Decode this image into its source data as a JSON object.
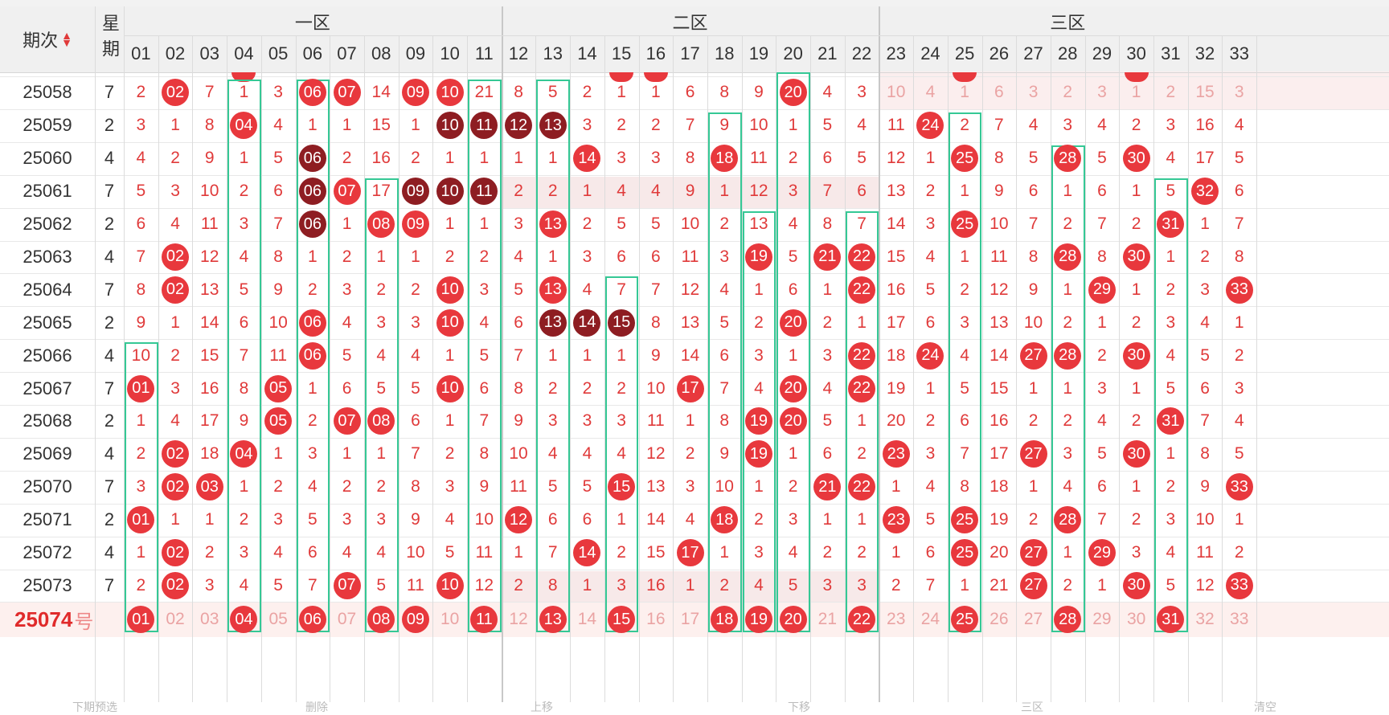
{
  "header": {
    "issue_col": "期次",
    "weekday_col": "星期",
    "zones": [
      "一区",
      "二区",
      "三区"
    ]
  },
  "columns": [
    "01",
    "02",
    "03",
    "04",
    "05",
    "06",
    "07",
    "08",
    "09",
    "10",
    "11",
    "12",
    "13",
    "14",
    "15",
    "16",
    "17",
    "18",
    "19",
    "20",
    "21",
    "22",
    "23",
    "24",
    "25",
    "26",
    "27",
    "28",
    "29",
    "30",
    "31",
    "32",
    "33"
  ],
  "rows": [
    {
      "issue": "25058",
      "week": "7",
      "cells": [
        "2",
        "02",
        "7",
        "1",
        "3",
        "06",
        "07",
        "14",
        "09",
        "10",
        "21",
        "8",
        "5",
        "2",
        "1",
        "1",
        "6",
        "8",
        "9",
        "20",
        "4",
        "3",
        "10",
        "4",
        "1",
        "6",
        "3",
        "2",
        "3",
        "1",
        "2",
        "15",
        "3"
      ],
      "balls": [
        2,
        6,
        7,
        9,
        10,
        20
      ]
    },
    {
      "issue": "25059",
      "week": "2",
      "cells": [
        "3",
        "1",
        "8",
        "04",
        "4",
        "1",
        "1",
        "15",
        "1",
        "10",
        "11",
        "12",
        "13",
        "3",
        "2",
        "2",
        "7",
        "9",
        "10",
        "1",
        "5",
        "4",
        "11",
        "24",
        "2",
        "7",
        "4",
        "3",
        "4",
        "2",
        "3",
        "16",
        "4"
      ],
      "balls": [
        4,
        10,
        11,
        12,
        13,
        24
      ],
      "dark": [
        10,
        11,
        12,
        13
      ]
    },
    {
      "issue": "25060",
      "week": "4",
      "cells": [
        "4",
        "2",
        "9",
        "1",
        "5",
        "06",
        "2",
        "16",
        "2",
        "1",
        "1",
        "1",
        "1",
        "14",
        "3",
        "3",
        "8",
        "18",
        "11",
        "2",
        "6",
        "5",
        "12",
        "1",
        "25",
        "8",
        "5",
        "28",
        "5",
        "30",
        "4",
        "17",
        "5"
      ],
      "balls": [
        6,
        14,
        18,
        25,
        28,
        30
      ],
      "dark": [
        6
      ]
    },
    {
      "issue": "25061",
      "week": "7",
      "cells": [
        "5",
        "3",
        "10",
        "2",
        "6",
        "06",
        "07",
        "17",
        "09",
        "10",
        "11",
        "2",
        "2",
        "1",
        "4",
        "4",
        "9",
        "1",
        "12",
        "3",
        "7",
        "6",
        "13",
        "2",
        "1",
        "9",
        "6",
        "1",
        "6",
        "1",
        "5",
        "32",
        "6"
      ],
      "balls": [
        6,
        7,
        9,
        10,
        11,
        32
      ],
      "dark": [
        6,
        9,
        10,
        11
      ]
    },
    {
      "issue": "25062",
      "week": "2",
      "cells": [
        "6",
        "4",
        "11",
        "3",
        "7",
        "06",
        "1",
        "08",
        "09",
        "1",
        "1",
        "3",
        "13",
        "2",
        "5",
        "5",
        "10",
        "2",
        "13",
        "4",
        "8",
        "7",
        "14",
        "3",
        "25",
        "10",
        "7",
        "2",
        "7",
        "2",
        "31",
        "1",
        "7"
      ],
      "balls": [
        6,
        8,
        9,
        13,
        25,
        31
      ],
      "dark": [
        6
      ]
    },
    {
      "issue": "25063",
      "week": "4",
      "cells": [
        "7",
        "02",
        "12",
        "4",
        "8",
        "1",
        "2",
        "1",
        "1",
        "2",
        "2",
        "4",
        "1",
        "3",
        "6",
        "6",
        "11",
        "3",
        "19",
        "5",
        "21",
        "22",
        "15",
        "4",
        "1",
        "11",
        "8",
        "28",
        "8",
        "30",
        "1",
        "2",
        "8"
      ],
      "balls": [
        2,
        19,
        21,
        22,
        28,
        30
      ]
    },
    {
      "issue": "25064",
      "week": "7",
      "cells": [
        "8",
        "02",
        "13",
        "5",
        "9",
        "2",
        "3",
        "2",
        "2",
        "10",
        "3",
        "5",
        "13",
        "4",
        "7",
        "7",
        "12",
        "4",
        "1",
        "6",
        "1",
        "22",
        "16",
        "5",
        "2",
        "12",
        "9",
        "1",
        "29",
        "1",
        "2",
        "3",
        "33"
      ],
      "balls": [
        2,
        10,
        13,
        22,
        29,
        33
      ]
    },
    {
      "issue": "25065",
      "week": "2",
      "cells": [
        "9",
        "1",
        "14",
        "6",
        "10",
        "06",
        "4",
        "3",
        "3",
        "10",
        "4",
        "6",
        "13",
        "14",
        "15",
        "8",
        "13",
        "5",
        "2",
        "20",
        "2",
        "1",
        "17",
        "6",
        "3",
        "13",
        "10",
        "2",
        "1",
        "2",
        "3",
        "4",
        "1"
      ],
      "balls": [
        6,
        10,
        13,
        14,
        15,
        20
      ],
      "dark": [
        13,
        14,
        15
      ]
    },
    {
      "issue": "25066",
      "week": "4",
      "cells": [
        "10",
        "2",
        "15",
        "7",
        "11",
        "06",
        "5",
        "4",
        "4",
        "1",
        "5",
        "7",
        "1",
        "1",
        "1",
        "9",
        "14",
        "6",
        "3",
        "1",
        "3",
        "22",
        "18",
        "24",
        "4",
        "14",
        "27",
        "28",
        "2",
        "30",
        "4",
        "5",
        "2"
      ],
      "balls": [
        6,
        22,
        24,
        27,
        28,
        30
      ]
    },
    {
      "issue": "25067",
      "week": "7",
      "cells": [
        "01",
        "3",
        "16",
        "8",
        "05",
        "1",
        "6",
        "5",
        "5",
        "10",
        "6",
        "8",
        "2",
        "2",
        "2",
        "10",
        "17",
        "7",
        "4",
        "20",
        "4",
        "22",
        "19",
        "1",
        "5",
        "15",
        "1",
        "1",
        "3",
        "1",
        "5",
        "6",
        "3"
      ],
      "balls": [
        1,
        5,
        10,
        17,
        20,
        22
      ]
    },
    {
      "issue": "25068",
      "week": "2",
      "cells": [
        "1",
        "4",
        "17",
        "9",
        "05",
        "2",
        "07",
        "08",
        "6",
        "1",
        "7",
        "9",
        "3",
        "3",
        "3",
        "11",
        "1",
        "8",
        "19",
        "20",
        "5",
        "1",
        "20",
        "2",
        "6",
        "16",
        "2",
        "2",
        "4",
        "2",
        "31",
        "7",
        "4"
      ],
      "balls": [
        5,
        7,
        8,
        19,
        20,
        31
      ]
    },
    {
      "issue": "25069",
      "week": "4",
      "cells": [
        "2",
        "02",
        "18",
        "04",
        "1",
        "3",
        "1",
        "1",
        "7",
        "2",
        "8",
        "10",
        "4",
        "4",
        "4",
        "12",
        "2",
        "9",
        "19",
        "1",
        "6",
        "2",
        "23",
        "3",
        "7",
        "17",
        "27",
        "3",
        "5",
        "30",
        "1",
        "8",
        "5"
      ],
      "balls": [
        2,
        4,
        19,
        23,
        27,
        30
      ]
    },
    {
      "issue": "25070",
      "week": "7",
      "cells": [
        "3",
        "02",
        "03",
        "1",
        "2",
        "4",
        "2",
        "2",
        "8",
        "3",
        "9",
        "11",
        "5",
        "5",
        "15",
        "13",
        "3",
        "10",
        "1",
        "2",
        "21",
        "22",
        "1",
        "4",
        "8",
        "18",
        "1",
        "4",
        "6",
        "1",
        "2",
        "9",
        "33"
      ],
      "balls": [
        2,
        3,
        15,
        21,
        22,
        33
      ]
    },
    {
      "issue": "25071",
      "week": "2",
      "cells": [
        "01",
        "1",
        "1",
        "2",
        "3",
        "5",
        "3",
        "3",
        "9",
        "4",
        "10",
        "12",
        "6",
        "6",
        "1",
        "14",
        "4",
        "18",
        "2",
        "3",
        "1",
        "1",
        "23",
        "5",
        "25",
        "19",
        "2",
        "28",
        "7",
        "2",
        "3",
        "10",
        "1"
      ],
      "balls": [
        1,
        12,
        18,
        23,
        25,
        28
      ]
    },
    {
      "issue": "25072",
      "week": "4",
      "cells": [
        "1",
        "02",
        "2",
        "3",
        "4",
        "6",
        "4",
        "4",
        "10",
        "5",
        "11",
        "1",
        "7",
        "14",
        "2",
        "15",
        "17",
        "1",
        "3",
        "4",
        "2",
        "2",
        "1",
        "6",
        "25",
        "20",
        "27",
        "1",
        "29",
        "3",
        "4",
        "11",
        "2"
      ],
      "balls": [
        2,
        14,
        17,
        25,
        27,
        29
      ]
    },
    {
      "issue": "25073",
      "week": "7",
      "cells": [
        "2",
        "02",
        "3",
        "4",
        "5",
        "7",
        "07",
        "5",
        "11",
        "10",
        "12",
        "2",
        "8",
        "1",
        "3",
        "16",
        "1",
        "2",
        "4",
        "5",
        "3",
        "3",
        "2",
        "7",
        "1",
        "21",
        "27",
        "2",
        "1",
        "30",
        "5",
        "12",
        "33"
      ],
      "balls": [
        2,
        7,
        10,
        27,
        30,
        33
      ]
    }
  ],
  "forecast": {
    "issue": "25074",
    "suffix": "号",
    "cells": [
      "01",
      "02",
      "03",
      "04",
      "05",
      "06",
      "07",
      "08",
      "09",
      "10",
      "11",
      "12",
      "13",
      "14",
      "15",
      "16",
      "17",
      "18",
      "19",
      "20",
      "21",
      "22",
      "23",
      "24",
      "25",
      "26",
      "27",
      "28",
      "29",
      "30",
      "31",
      "32",
      "33"
    ],
    "balls": [
      1,
      4,
      6,
      8,
      9,
      11,
      13,
      15,
      18,
      19,
      20,
      22,
      25,
      28,
      31
    ]
  },
  "footer": [
    "下期预选",
    "删除",
    "上移",
    "下移",
    "三区",
    "清空"
  ],
  "colors": {
    "ball": "#e8383d",
    "ball_dark": "#8e1d22",
    "number": "#e03a3a",
    "trend_line": "#35c895"
  }
}
